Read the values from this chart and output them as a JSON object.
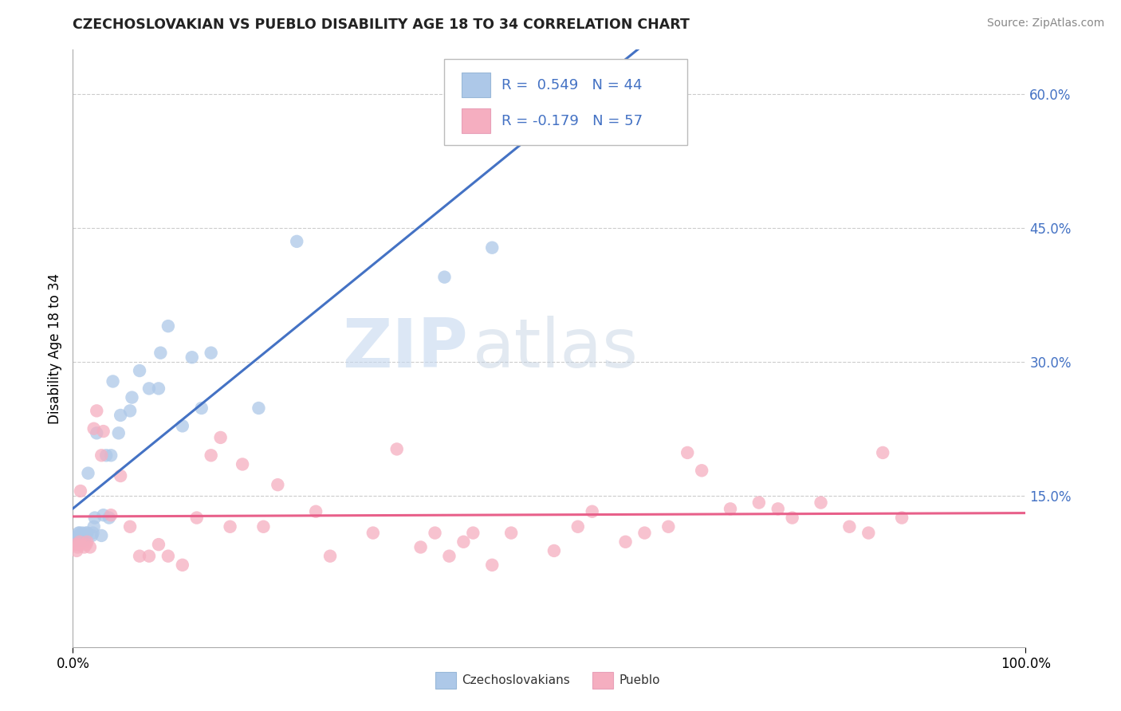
{
  "title": "CZECHOSLOVAKIAN VS PUEBLO DISABILITY AGE 18 TO 34 CORRELATION CHART",
  "source": "Source: ZipAtlas.com",
  "ylabel": "Disability Age 18 to 34",
  "watermark_zip": "ZIP",
  "watermark_atlas": "atlas",
  "legend_label1": "Czechoslovakians",
  "legend_label2": "Pueblo",
  "r1": 0.549,
  "n1": 44,
  "r2": -0.179,
  "n2": 57,
  "xlim": [
    0.0,
    1.0
  ],
  "ylim": [
    -0.02,
    0.65
  ],
  "yticks": [
    0.15,
    0.3,
    0.45,
    0.6
  ],
  "ytick_labels": [
    "15.0%",
    "30.0%",
    "45.0%",
    "60.0%"
  ],
  "color_czech": "#adc8e8",
  "color_pueblo": "#f5aec0",
  "line_color_czech": "#4472c4",
  "line_color_pueblo": "#e8608a",
  "background_color": "#ffffff",
  "czech_x": [
    0.004,
    0.005,
    0.006,
    0.006,
    0.007,
    0.007,
    0.008,
    0.008,
    0.009,
    0.01,
    0.01,
    0.012,
    0.013,
    0.014,
    0.015,
    0.016,
    0.02,
    0.021,
    0.022,
    0.023,
    0.025,
    0.03,
    0.032,
    0.035,
    0.038,
    0.04,
    0.042,
    0.048,
    0.05,
    0.06,
    0.062,
    0.07,
    0.08,
    0.09,
    0.092,
    0.1,
    0.115,
    0.125,
    0.135,
    0.145,
    0.195,
    0.235,
    0.39,
    0.44
  ],
  "czech_y": [
    0.1,
    0.1,
    0.105,
    0.108,
    0.1,
    0.108,
    0.105,
    0.1,
    0.105,
    0.105,
    0.108,
    0.1,
    0.105,
    0.108,
    0.108,
    0.175,
    0.105,
    0.108,
    0.115,
    0.125,
    0.22,
    0.105,
    0.128,
    0.195,
    0.125,
    0.195,
    0.278,
    0.22,
    0.24,
    0.245,
    0.26,
    0.29,
    0.27,
    0.27,
    0.31,
    0.34,
    0.228,
    0.305,
    0.248,
    0.31,
    0.248,
    0.435,
    0.395,
    0.428
  ],
  "pueblo_x": [
    0.003,
    0.004,
    0.005,
    0.006,
    0.007,
    0.008,
    0.012,
    0.014,
    0.015,
    0.018,
    0.022,
    0.025,
    0.03,
    0.032,
    0.04,
    0.05,
    0.06,
    0.07,
    0.08,
    0.09,
    0.1,
    0.115,
    0.13,
    0.145,
    0.155,
    0.165,
    0.178,
    0.2,
    0.215,
    0.255,
    0.27,
    0.315,
    0.34,
    0.365,
    0.38,
    0.395,
    0.41,
    0.42,
    0.44,
    0.46,
    0.505,
    0.53,
    0.545,
    0.58,
    0.6,
    0.625,
    0.645,
    0.66,
    0.69,
    0.72,
    0.74,
    0.755,
    0.785,
    0.815,
    0.835,
    0.85,
    0.87
  ],
  "pueblo_y": [
    0.095,
    0.088,
    0.092,
    0.095,
    0.098,
    0.155,
    0.092,
    0.095,
    0.098,
    0.092,
    0.225,
    0.245,
    0.195,
    0.222,
    0.128,
    0.172,
    0.115,
    0.082,
    0.082,
    0.095,
    0.082,
    0.072,
    0.125,
    0.195,
    0.215,
    0.115,
    0.185,
    0.115,
    0.162,
    0.132,
    0.082,
    0.108,
    0.202,
    0.092,
    0.108,
    0.082,
    0.098,
    0.108,
    0.072,
    0.108,
    0.088,
    0.115,
    0.132,
    0.098,
    0.108,
    0.115,
    0.198,
    0.178,
    0.135,
    0.142,
    0.135,
    0.125,
    0.142,
    0.115,
    0.108,
    0.198,
    0.125
  ]
}
